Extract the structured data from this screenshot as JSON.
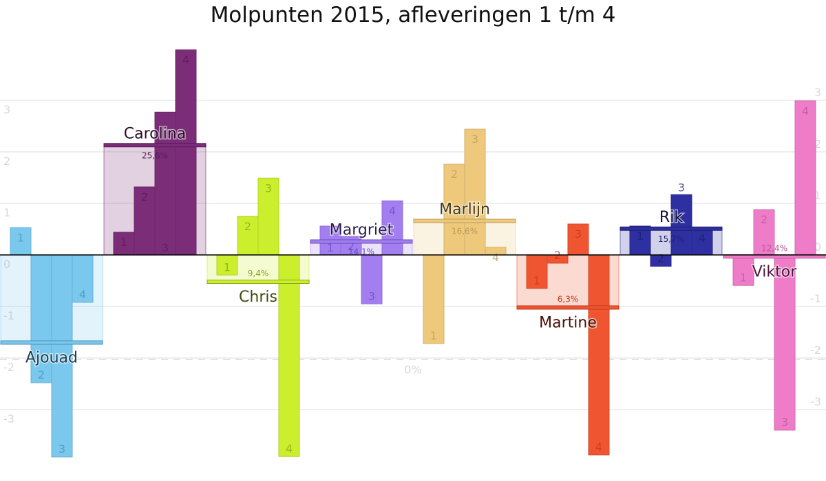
{
  "chart_data": {
    "type": "bar",
    "title": "Molpunten 2015, afleveringen 1 t/m 4",
    "xlabel": "",
    "ylabel": "",
    "ylim": [
      -4,
      4
    ],
    "yticks": [
      "3",
      "2",
      "1",
      "0",
      "-1",
      "-2",
      "-3"
    ],
    "ytick_values": [
      3,
      2,
      1,
      0,
      -1,
      -2,
      -3
    ],
    "grid": true,
    "reference_line": {
      "value": -2.03,
      "label": "0%"
    },
    "episodes": [
      "1",
      "2",
      "3",
      "4"
    ],
    "series": [
      {
        "name": "Ajouad",
        "color": "#7ac8ee",
        "text_color": "#1d3f50",
        "pct_color": "#4a8fb5",
        "values": [
          0.53,
          -2.48,
          -3.92,
          -0.92
        ],
        "average": -1.7,
        "percent": ""
      },
      {
        "name": "Carolina",
        "color": "#7b2d78",
        "text_color": "#2a0a2a",
        "pct_color": "#5a1a58",
        "values": [
          0.44,
          1.32,
          2.77,
          3.98
        ],
        "average": 2.13,
        "percent": "25,6%"
      },
      {
        "name": "Chris",
        "color": "#cbee2d",
        "text_color": "#3e4a0a",
        "pct_color": "#8aa516",
        "values": [
          -0.39,
          0.75,
          1.49,
          -3.91
        ],
        "average": -0.52,
        "percent": "9,4%"
      },
      {
        "name": "Margriet",
        "color": "#a37ef0",
        "text_color": "#2c1c4f",
        "pct_color": "#6a4cc0",
        "values": [
          0.56,
          0.36,
          -0.95,
          1.05
        ],
        "average": 0.26,
        "percent": "14,1%"
      },
      {
        "name": "Marlijn",
        "color": "#eec97b",
        "text_color": "#4a3b1a",
        "pct_color": "#b89a5a",
        "values": [
          -1.72,
          1.76,
          2.44,
          0.15
        ],
        "average": 0.66,
        "percent": "16,6%"
      },
      {
        "name": "Martine",
        "color": "#ef5530",
        "text_color": "#4a0e05",
        "pct_color": "#c03818",
        "values": [
          -0.65,
          -0.16,
          0.6,
          -3.88
        ],
        "average": -1.02,
        "percent": "6,3%"
      },
      {
        "name": "Rik",
        "color": "#2e2fa0",
        "text_color": "#0f0f3a",
        "pct_color": "#1e1f70",
        "values": [
          0.56,
          -0.22,
          1.17,
          0.52
        ],
        "average": 0.51,
        "percent": "15,7%"
      },
      {
        "name": "Viktor",
        "color": "#ef7cc9",
        "text_color": "#4a1a3a",
        "pct_color": "#b55a95",
        "values": [
          -0.59,
          0.88,
          -3.4,
          2.99
        ],
        "average": -0.03,
        "percent": "12,4%"
      }
    ]
  }
}
